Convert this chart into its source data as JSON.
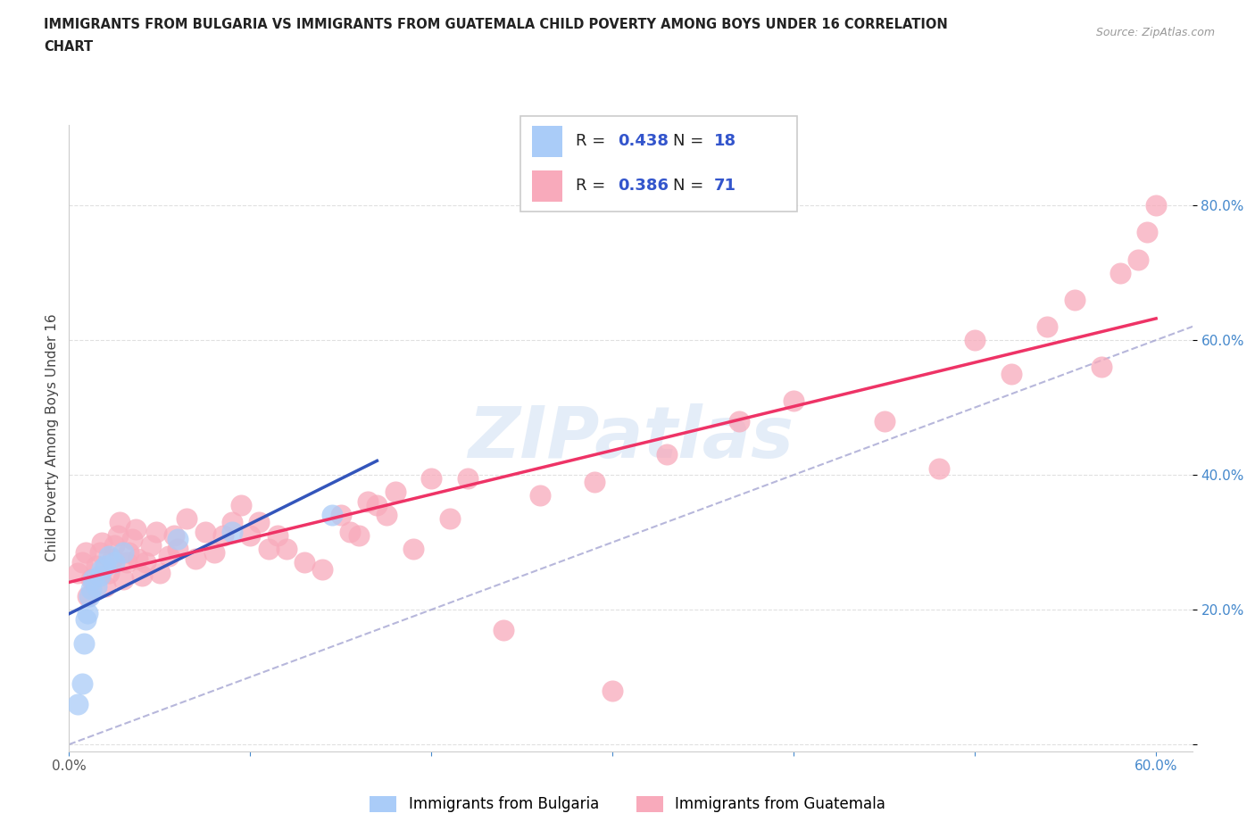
{
  "title_line1": "IMMIGRANTS FROM BULGARIA VS IMMIGRANTS FROM GUATEMALA CHILD POVERTY AMONG BOYS UNDER 16 CORRELATION",
  "title_line2": "CHART",
  "source": "Source: ZipAtlas.com",
  "ylabel": "Child Poverty Among Boys Under 16",
  "xlim": [
    0.0,
    0.62
  ],
  "ylim": [
    -0.01,
    0.92
  ],
  "xtick_positions": [
    0.0,
    0.1,
    0.2,
    0.3,
    0.4,
    0.5,
    0.6
  ],
  "xticklabels": [
    "0.0%",
    "",
    "",
    "",
    "",
    "",
    "60.0%"
  ],
  "ytick_positions": [
    0.0,
    0.2,
    0.4,
    0.6,
    0.8
  ],
  "yticklabels": [
    "",
    "20.0%",
    "40.0%",
    "60.0%",
    "80.0%"
  ],
  "bulgaria_R": "0.438",
  "bulgaria_N": "18",
  "guatemala_R": "0.386",
  "guatemala_N": "71",
  "bulgaria_color": "#aaccf8",
  "guatemala_color": "#f8aabb",
  "bulgaria_line_color": "#3355bb",
  "guatemala_line_color": "#ee3366",
  "diagonal_color": "#9999cc",
  "watermark_text": "ZIPatlas",
  "r_n_color": "#3355cc",
  "legend_label_bulgaria": "Immigrants from Bulgaria",
  "legend_label_guatemala": "Immigrants from Guatemala",
  "bulgaria_x": [
    0.005,
    0.007,
    0.008,
    0.009,
    0.01,
    0.011,
    0.012,
    0.013,
    0.015,
    0.017,
    0.018,
    0.02,
    0.022,
    0.025,
    0.03,
    0.06,
    0.09,
    0.145
  ],
  "bulgaria_y": [
    0.06,
    0.09,
    0.15,
    0.185,
    0.195,
    0.22,
    0.23,
    0.245,
    0.235,
    0.25,
    0.26,
    0.265,
    0.28,
    0.27,
    0.285,
    0.305,
    0.315,
    0.34
  ],
  "guatemala_x": [
    0.005,
    0.007,
    0.009,
    0.01,
    0.012,
    0.015,
    0.017,
    0.018,
    0.02,
    0.022,
    0.024,
    0.025,
    0.027,
    0.028,
    0.03,
    0.032,
    0.033,
    0.035,
    0.037,
    0.038,
    0.04,
    0.042,
    0.045,
    0.048,
    0.05,
    0.055,
    0.058,
    0.06,
    0.065,
    0.07,
    0.075,
    0.08,
    0.085,
    0.09,
    0.095,
    0.1,
    0.105,
    0.11,
    0.115,
    0.12,
    0.13,
    0.14,
    0.15,
    0.155,
    0.16,
    0.165,
    0.17,
    0.175,
    0.18,
    0.19,
    0.2,
    0.21,
    0.22,
    0.24,
    0.26,
    0.29,
    0.3,
    0.33,
    0.37,
    0.4,
    0.45,
    0.48,
    0.5,
    0.52,
    0.54,
    0.555,
    0.57,
    0.58,
    0.59,
    0.595,
    0.6
  ],
  "guatemala_y": [
    0.255,
    0.27,
    0.285,
    0.22,
    0.245,
    0.265,
    0.285,
    0.3,
    0.235,
    0.255,
    0.275,
    0.295,
    0.31,
    0.33,
    0.245,
    0.27,
    0.285,
    0.305,
    0.32,
    0.275,
    0.25,
    0.27,
    0.295,
    0.315,
    0.255,
    0.28,
    0.31,
    0.29,
    0.335,
    0.275,
    0.315,
    0.285,
    0.31,
    0.33,
    0.355,
    0.31,
    0.33,
    0.29,
    0.31,
    0.29,
    0.27,
    0.26,
    0.34,
    0.315,
    0.31,
    0.36,
    0.355,
    0.34,
    0.375,
    0.29,
    0.395,
    0.335,
    0.395,
    0.17,
    0.37,
    0.39,
    0.08,
    0.43,
    0.48,
    0.51,
    0.48,
    0.41,
    0.6,
    0.55,
    0.62,
    0.66,
    0.56,
    0.7,
    0.72,
    0.76,
    0.8
  ]
}
